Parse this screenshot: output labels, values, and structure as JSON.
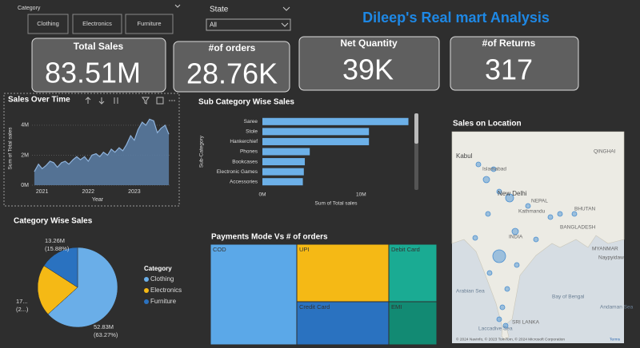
{
  "header": {
    "title": "Dileep's Real mart Analysis"
  },
  "slicers": {
    "category": {
      "label": "Category",
      "options": [
        "Clothing",
        "Electronics",
        "Furniture"
      ]
    },
    "state": {
      "label": "State",
      "selected": "All"
    }
  },
  "cards": [
    {
      "label": "Total Sales",
      "value": "83.51M"
    },
    {
      "label": "#of orders",
      "value": "28.76K"
    },
    {
      "label": "Net Quantity",
      "value": "39K"
    },
    {
      "label": "#of Returns",
      "value": "317"
    }
  ],
  "map": {
    "title": "Sales on Location",
    "places": [
      "QINGHAI",
      "Kabul",
      "Islamabad",
      "New Delhi",
      "NEPAL",
      "Kathmandu",
      "BHUTAN",
      "BANGLADESH",
      "INDIA",
      "MYANMAR",
      "Naypyidaw",
      "Bay of Bengal",
      "Arabian Sea",
      "Andaman Sea",
      "Laccadive Sea",
      "SRI LANKA"
    ],
    "attribution": "© 2024 Navinfo, © 2023 TomTom, © 2024 Microsoft Corporation",
    "terms": "Terms"
  },
  "chart_data": [
    {
      "type": "area",
      "title": "Sales Over Time",
      "x_label": "Year",
      "y_label": "Sum of Total sales",
      "x": [
        2020.83,
        2020.92,
        2021.0,
        2021.08,
        2021.17,
        2021.25,
        2021.33,
        2021.42,
        2021.5,
        2021.58,
        2021.67,
        2021.75,
        2021.83,
        2021.92,
        2022.0,
        2022.08,
        2022.17,
        2022.25,
        2022.33,
        2022.42,
        2022.5,
        2022.58,
        2022.67,
        2022.75,
        2022.83,
        2022.92,
        2023.0,
        2023.08,
        2023.17,
        2023.25,
        2023.33,
        2023.42,
        2023.5,
        2023.58,
        2023.67,
        2023.75
      ],
      "values": [
        0.9,
        1.4,
        1.1,
        1.3,
        1.6,
        1.5,
        1.2,
        1.5,
        1.6,
        1.4,
        1.7,
        1.9,
        1.7,
        1.9,
        1.6,
        2.0,
        2.1,
        1.9,
        2.2,
        2.0,
        2.4,
        2.2,
        2.5,
        2.3,
        2.7,
        3.3,
        3.0,
        3.7,
        4.2,
        4.0,
        4.4,
        4.3,
        3.5,
        3.8,
        4.0,
        3.4
      ],
      "color": "#5b7ea6",
      "xlim": [
        2020.78,
        2023.8
      ],
      "xticks": [
        2021,
        2022,
        2023
      ],
      "ylim": [
        0,
        4.9
      ],
      "yticks": [
        {
          "value": 0,
          "label": "0M"
        },
        {
          "value": 2,
          "label": "2M"
        },
        {
          "value": 4,
          "label": "4M"
        }
      ]
    },
    {
      "type": "bar",
      "orientation": "horizontal",
      "title": "Sub Category Wise Sales",
      "x_label": "Sum of Total sales",
      "y_label": "Sub-Category",
      "categories": [
        "Saree",
        "Stole",
        "Hankerchief",
        "Phones",
        "Bookcases",
        "Electronic Games",
        "Accessories"
      ],
      "values": [
        14.8,
        10.8,
        10.8,
        4.8,
        4.3,
        4.2,
        4.1
      ],
      "color": "#6cb0e8",
      "xlim": [
        0,
        15
      ],
      "xticks": [
        {
          "value": 0,
          "label": "0M"
        },
        {
          "value": 10,
          "label": "10M"
        }
      ]
    },
    {
      "type": "pie",
      "title": "Category Wise Sales",
      "legend_title": "Category",
      "categories": [
        "Clothing",
        "Electronics",
        "Furniture"
      ],
      "values": [
        52.83,
        17.42,
        13.26
      ],
      "value_labels": [
        "52.83M",
        "17...",
        "13.26M"
      ],
      "percents": [
        63.27,
        20.86,
        15.88
      ],
      "percent_labels": [
        "(63.27%)",
        "(2...)",
        "(15.88%)"
      ],
      "colors": [
        "#6aaee8",
        "#f5b915",
        "#2a72c0"
      ]
    },
    {
      "type": "treemap",
      "title": "Payments Mode Vs # of orders",
      "categories": [
        "COD",
        "UPI",
        "Debit Card",
        "Credit Card",
        "EMI"
      ],
      "values": [
        10976,
        6678,
        3484,
        5009,
        2613
      ],
      "colors": [
        "#5ba8e8",
        "#f5b915",
        "#1aab93",
        "#2a72c0",
        "#128a73"
      ]
    }
  ]
}
